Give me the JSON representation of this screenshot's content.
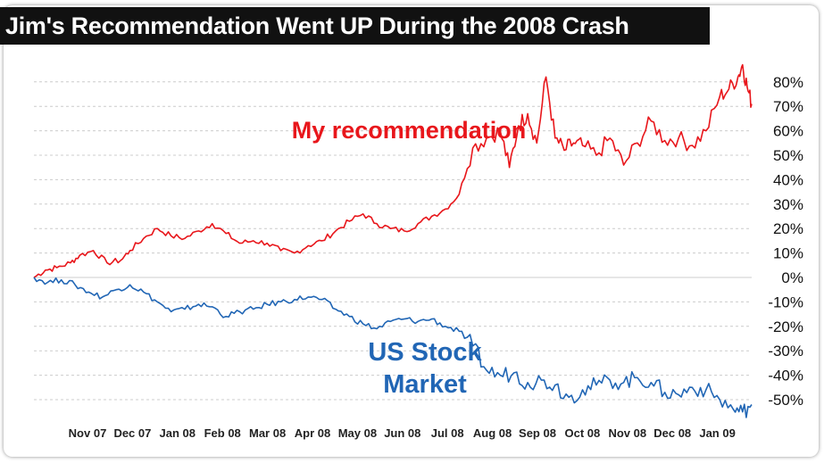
{
  "chart_data": {
    "type": "line",
    "title": "Jim's Recommendation Went UP During the 2008 Crash",
    "x_tick_labels": [
      "Nov 07",
      "Dec 07",
      "Jan 08",
      "Feb 08",
      "Mar 08",
      "Apr 08",
      "May 08",
      "Jun 08",
      "Jul 08",
      "Aug 08",
      "Sep 08",
      "Oct 08",
      "Nov 08",
      "Dec 08",
      "Jan 09"
    ],
    "y_tick_labels": [
      "80%",
      "70%",
      "60%",
      "50%",
      "40%",
      "30%",
      "20%",
      "10%",
      "0%",
      "-10%",
      "-20%",
      "-30%",
      "-40%",
      "-50%"
    ],
    "ylim": [
      -55,
      90
    ],
    "xlim": [
      0,
      15.7
    ],
    "grid": "horizontal",
    "series": [
      {
        "name": "My recommendation",
        "color": "#e8161b",
        "x": [
          0,
          0.25,
          0.5,
          0.8,
          1.0,
          1.3,
          1.6,
          1.9,
          2.1,
          2.4,
          2.7,
          3.0,
          3.3,
          3.6,
          3.9,
          4.2,
          4.5,
          4.8,
          5.1,
          5.4,
          5.7,
          6.0,
          6.3,
          6.6,
          6.9,
          7.2,
          7.5,
          7.8,
          8.1,
          8.4,
          8.7,
          9.0,
          9.3,
          9.6,
          9.9,
          10.2,
          10.4,
          10.6,
          10.8,
          11.0,
          11.2,
          11.4,
          11.6,
          11.8,
          12.0,
          12.3,
          12.6,
          12.9,
          13.2,
          13.5,
          13.8,
          14.1,
          14.4,
          14.7,
          15.0,
          15.2,
          15.4,
          15.5,
          15.6,
          15.7
        ],
        "values": [
          0,
          3,
          4,
          6,
          9,
          11,
          6,
          7,
          11,
          16,
          20,
          17,
          16,
          19,
          22,
          18,
          14,
          15,
          14,
          11,
          10,
          13,
          15,
          19,
          23,
          26,
          22,
          20,
          19,
          22,
          25,
          28,
          34,
          53,
          57,
          60,
          45,
          62,
          67,
          55,
          82,
          57,
          52,
          55,
          54,
          50,
          57,
          46,
          55,
          64,
          56,
          57,
          54,
          60,
          74,
          77,
          82,
          87,
          78,
          71
        ]
      },
      {
        "name": "US Stock Market",
        "color": "#2166b5",
        "x": [
          0,
          0.3,
          0.6,
          0.9,
          1.2,
          1.5,
          1.8,
          2.1,
          2.4,
          2.7,
          3.0,
          3.3,
          3.6,
          3.9,
          4.2,
          4.5,
          4.8,
          5.1,
          5.4,
          5.7,
          6.0,
          6.3,
          6.6,
          6.9,
          7.2,
          7.5,
          7.8,
          8.1,
          8.4,
          8.7,
          9.0,
          9.3,
          9.6,
          9.9,
          10.2,
          10.5,
          10.8,
          11.1,
          11.4,
          11.7,
          12.0,
          12.3,
          12.6,
          12.9,
          13.2,
          13.5,
          13.8,
          14.1,
          14.4,
          14.7,
          15.0,
          15.3,
          15.5,
          15.7
        ],
        "values": [
          0,
          -2,
          -1,
          -3,
          -6,
          -8,
          -5,
          -3,
          -6,
          -10,
          -14,
          -13,
          -11,
          -12,
          -16,
          -14,
          -13,
          -11,
          -10,
          -9,
          -8,
          -9,
          -13,
          -16,
          -19,
          -21,
          -18,
          -17,
          -18,
          -17,
          -20,
          -22,
          -28,
          -38,
          -40,
          -39,
          -43,
          -42,
          -44,
          -49,
          -46,
          -44,
          -42,
          -43,
          -41,
          -43,
          -47,
          -48,
          -45,
          -46,
          -50,
          -54,
          -55,
          -52
        ]
      }
    ]
  },
  "annotations": {
    "recommendation_label": "My recommendation",
    "market_label_line1": "US Stock",
    "market_label_line2": "Market"
  },
  "colors": {
    "recommendation": "#e8161b",
    "market": "#2166b5",
    "grid": "#cccccc",
    "title_bg": "#111111",
    "title_text": "#ffffff"
  }
}
